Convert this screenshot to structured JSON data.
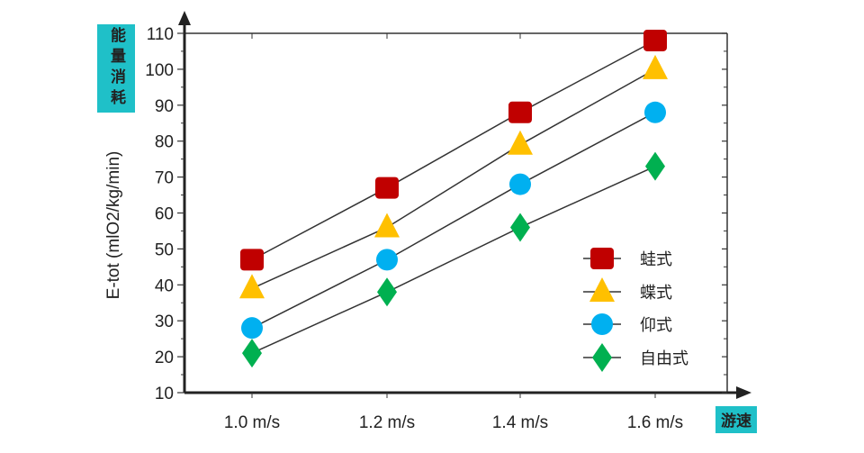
{
  "chart_data": {
    "type": "line",
    "title": "",
    "ylabel": "E-tot (mlO2/kg/min)",
    "ylabel_badge": "能量消耗",
    "xlabel_badge": "游速",
    "categories": [
      "1.0 m/s",
      "1.2 m/s",
      "1.4 m/s",
      "1.6 m/s"
    ],
    "ylim": [
      10,
      110
    ],
    "yticks": [
      10,
      20,
      30,
      40,
      50,
      60,
      70,
      80,
      90,
      100,
      110
    ],
    "legend_position": "bottom-right",
    "series": [
      {
        "name": "蛙式",
        "marker": "square",
        "color": "#c00000",
        "values": [
          47,
          67,
          88,
          108
        ]
      },
      {
        "name": "蝶式",
        "marker": "triangle",
        "color": "#ffc000",
        "values": [
          39,
          56,
          79,
          100
        ]
      },
      {
        "name": "仰式",
        "marker": "circle",
        "color": "#00b0f0",
        "values": [
          28,
          47,
          68,
          88
        ]
      },
      {
        "name": "自由式",
        "marker": "diamond",
        "color": "#00b050",
        "values": [
          21,
          38,
          56,
          73
        ]
      }
    ],
    "badge_color": "#1fc0c8"
  }
}
